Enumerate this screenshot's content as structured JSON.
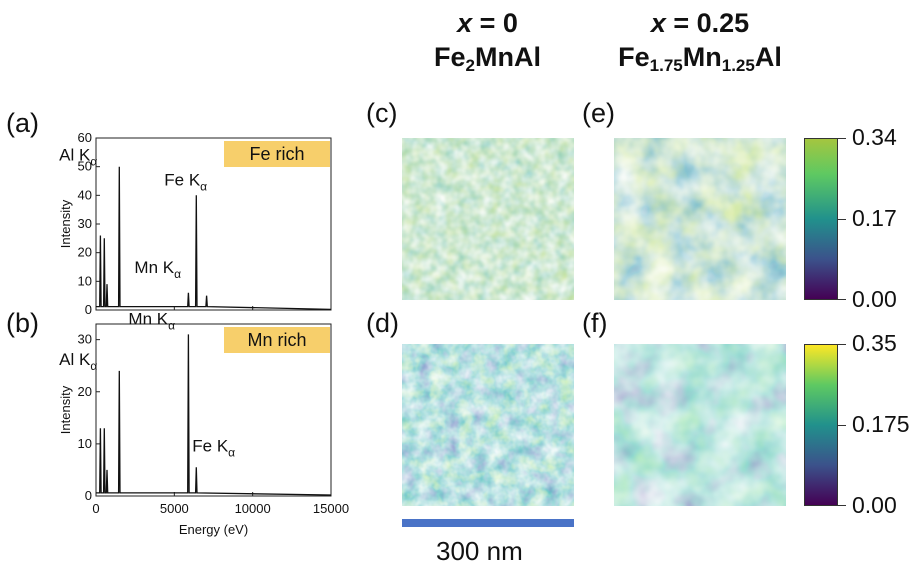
{
  "columns": [
    {
      "x_label": "x",
      "x_value": "= 0",
      "formula": {
        "el1": "Fe",
        "s1": "2",
        "el2": "Mn",
        "s2": "",
        "el3": "Al"
      }
    },
    {
      "x_label": "x",
      "x_value": "= 0.25",
      "formula": {
        "el1": "Fe",
        "s1": "1.75",
        "el2": "Mn",
        "s2": "1.25",
        "el3": "Al"
      }
    }
  ],
  "panel_labels": {
    "a": "(a)",
    "b": "(b)",
    "c": "(c)",
    "d": "(d)",
    "e": "(e)",
    "f": "(f)"
  },
  "colorbars": [
    {
      "max": "0.34",
      "mid": "0.17",
      "min": "0.00"
    },
    {
      "max": "0.35",
      "mid": "0.175",
      "min": "0.00"
    }
  ],
  "scale_bar": {
    "label": "300 nm"
  },
  "colors": {
    "highlight_box": "#f7cf6b",
    "scale_bar": "#4a73c7",
    "line": "#111111"
  },
  "chart_data": [
    {
      "type": "line",
      "panel": "(a)",
      "xlabel": "",
      "ylabel": "Intensity",
      "xlim": [
        0,
        15000
      ],
      "ylim": [
        0,
        60
      ],
      "yticks": [
        0,
        10,
        20,
        30,
        40,
        50,
        60
      ],
      "legend_box": "Fe rich",
      "peaks": [
        {
          "x": 280,
          "y": 26
        },
        {
          "x": 530,
          "y": 25
        },
        {
          "x": 700,
          "y": 9
        },
        {
          "x": 1487,
          "y": 50
        },
        {
          "x": 5899,
          "y": 6
        },
        {
          "x": 6400,
          "y": 40
        },
        {
          "x": 7060,
          "y": 5
        }
      ],
      "baseline": 1.2,
      "annotations": [
        {
          "text": "Al K",
          "sub": "α",
          "x": 1487,
          "y": 50
        },
        {
          "text": "Fe K",
          "sub": "α",
          "x": 6400,
          "y": 40
        },
        {
          "text": "Mn K",
          "sub": "α",
          "x": 5899,
          "y": 6
        }
      ]
    },
    {
      "type": "line",
      "panel": "(b)",
      "xlabel": "Energy (eV)",
      "ylabel": "Intensity",
      "xlim": [
        0,
        15000
      ],
      "ylim": [
        0,
        33
      ],
      "yticks": [
        0,
        10,
        20,
        30
      ],
      "xticks": [
        0,
        5000,
        10000,
        15000
      ],
      "legend_box": "Mn rich",
      "peaks": [
        {
          "x": 280,
          "y": 13
        },
        {
          "x": 530,
          "y": 13
        },
        {
          "x": 700,
          "y": 5
        },
        {
          "x": 1487,
          "y": 24
        },
        {
          "x": 5899,
          "y": 31
        },
        {
          "x": 6400,
          "y": 5.5
        }
      ],
      "baseline": 0.6,
      "annotations": [
        {
          "text": "Mn K",
          "sub": "α",
          "x": 5899,
          "y": 31
        },
        {
          "text": "Al K",
          "sub": "α",
          "x": 1487,
          "y": 24
        },
        {
          "text": "Fe K",
          "sub": "α",
          "x": 6400,
          "y": 5.5
        }
      ]
    }
  ]
}
